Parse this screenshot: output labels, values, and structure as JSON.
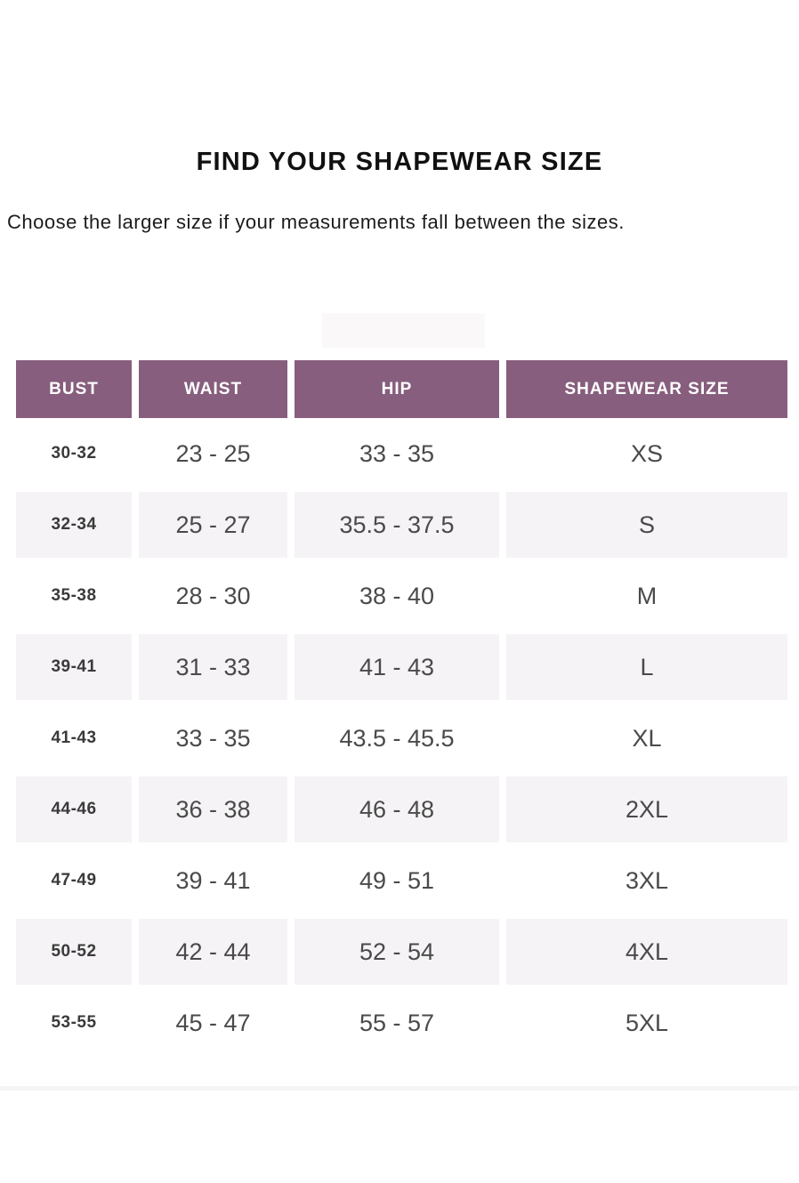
{
  "page": {
    "title": "FIND YOUR SHAPEWEAR SIZE",
    "subtitle": "Choose the larger size if your measurements fall between the sizes."
  },
  "table": {
    "columns": [
      "BUST",
      "WAIST",
      "HIP",
      "SHAPEWEAR SIZE"
    ],
    "rows": [
      {
        "bust": "30-32",
        "waist": "23 - 25",
        "hip": "33 - 35",
        "size": "XS"
      },
      {
        "bust": "32-34",
        "waist": "25 - 27",
        "hip": "35.5 - 37.5",
        "size": "S"
      },
      {
        "bust": "35-38",
        "waist": "28 - 30",
        "hip": "38 - 40",
        "size": "M"
      },
      {
        "bust": "39-41",
        "waist": "31 - 33",
        "hip": "41 - 43",
        "size": "L"
      },
      {
        "bust": "41-43",
        "waist": "33 - 35",
        "hip": "43.5 - 45.5",
        "size": "XL"
      },
      {
        "bust": "44-46",
        "waist": "36 - 38",
        "hip": "46 - 48",
        "size": "2XL"
      },
      {
        "bust": "47-49",
        "waist": "39 - 41",
        "hip": "49 - 51",
        "size": "3XL"
      },
      {
        "bust": "50-52",
        "waist": "42 - 44",
        "hip": "52 - 54",
        "size": "4XL"
      },
      {
        "bust": "53-55",
        "waist": "45 - 47",
        "hip": "55 - 57",
        "size": "5XL"
      }
    ]
  },
  "colors": {
    "header_bg": "#875e7d",
    "header_text": "#ffffff",
    "alt_row_bg": "#f5f3f5",
    "title_color": "#111111",
    "body_text": "#1c1c1c",
    "cell_text": "#4a4a4a",
    "bust_text": "#3a3a3a",
    "divider": "#f6f5f6"
  }
}
